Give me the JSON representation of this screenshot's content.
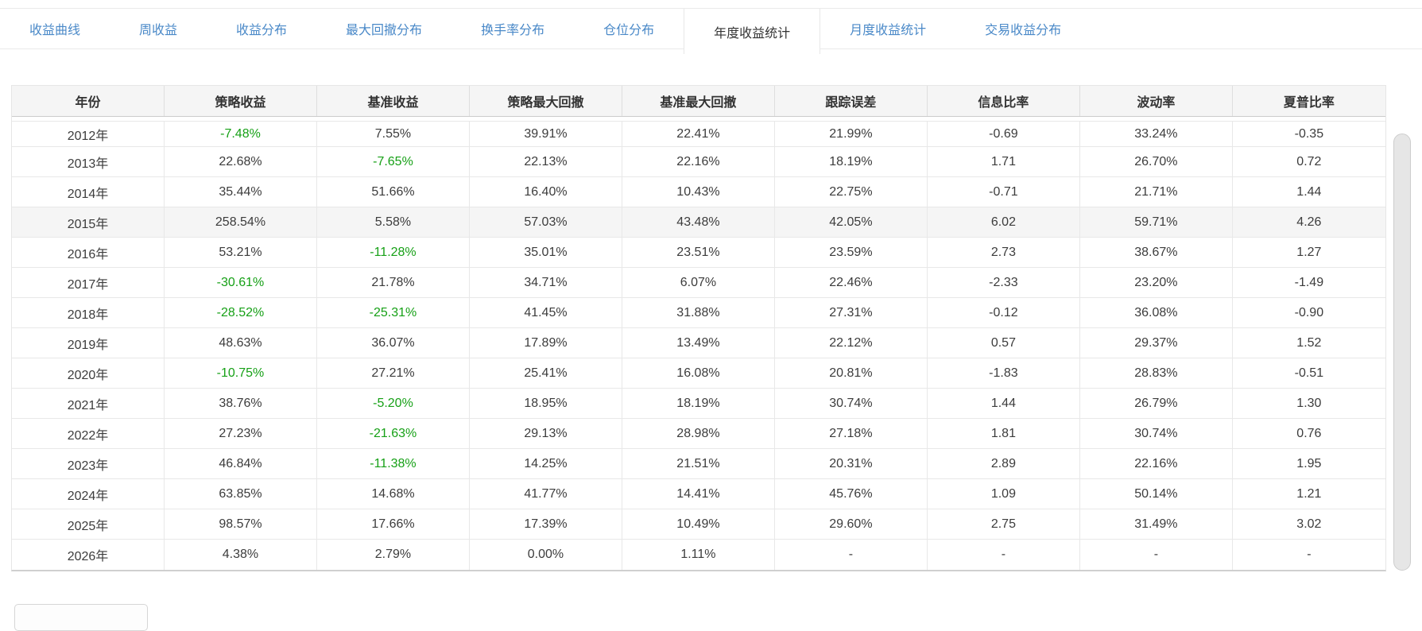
{
  "tabs": [
    {
      "id": "return-curve",
      "label": "收益曲线",
      "active": false
    },
    {
      "id": "weekly-return",
      "label": "周收益",
      "active": false
    },
    {
      "id": "return-distribution",
      "label": "收益分布",
      "active": false
    },
    {
      "id": "max-drawdown-distribution",
      "label": "最大回撤分布",
      "active": false
    },
    {
      "id": "turnover-distribution",
      "label": "换手率分布",
      "active": false
    },
    {
      "id": "position-distribution",
      "label": "仓位分布",
      "active": false
    },
    {
      "id": "annual-return-stats",
      "label": "年度收益统计",
      "active": true
    },
    {
      "id": "monthly-return-stats",
      "label": "月度收益统计",
      "active": false
    },
    {
      "id": "trade-return-distribution",
      "label": "交易收益分布",
      "active": false
    }
  ],
  "table": {
    "columns": [
      "年份",
      "策略收益",
      "基准收益",
      "策略最大回撤",
      "基准最大回撤",
      "跟踪误差",
      "信息比率",
      "波动率",
      "夏普比率"
    ],
    "rows": [
      [
        "2012年",
        "-7.48%",
        "7.55%",
        "39.91%",
        "22.41%",
        "21.99%",
        "-0.69",
        "33.24%",
        "-0.35"
      ],
      [
        "2013年",
        "22.68%",
        "-7.65%",
        "22.13%",
        "22.16%",
        "18.19%",
        "1.71",
        "26.70%",
        "0.72"
      ],
      [
        "2014年",
        "35.44%",
        "51.66%",
        "16.40%",
        "10.43%",
        "22.75%",
        "-0.71",
        "21.71%",
        "1.44"
      ],
      [
        "2015年",
        "258.54%",
        "5.58%",
        "57.03%",
        "43.48%",
        "42.05%",
        "6.02",
        "59.71%",
        "4.26"
      ],
      [
        "2016年",
        "53.21%",
        "-11.28%",
        "35.01%",
        "23.51%",
        "23.59%",
        "2.73",
        "38.67%",
        "1.27"
      ],
      [
        "2017年",
        "-30.61%",
        "21.78%",
        "34.71%",
        "6.07%",
        "22.46%",
        "-2.33",
        "23.20%",
        "-1.49"
      ],
      [
        "2018年",
        "-28.52%",
        "-25.31%",
        "41.45%",
        "31.88%",
        "27.31%",
        "-0.12",
        "36.08%",
        "-0.90"
      ],
      [
        "2019年",
        "48.63%",
        "36.07%",
        "17.89%",
        "13.49%",
        "22.12%",
        "0.57",
        "29.37%",
        "1.52"
      ],
      [
        "2020年",
        "-10.75%",
        "27.21%",
        "25.41%",
        "16.08%",
        "20.81%",
        "-1.83",
        "28.83%",
        "-0.51"
      ],
      [
        "2021年",
        "38.76%",
        "-5.20%",
        "18.95%",
        "18.19%",
        "30.74%",
        "1.44",
        "26.79%",
        "1.30"
      ],
      [
        "2022年",
        "27.23%",
        "-21.63%",
        "29.13%",
        "28.98%",
        "27.18%",
        "1.81",
        "30.74%",
        "0.76"
      ],
      [
        "2023年",
        "46.84%",
        "-11.38%",
        "14.25%",
        "21.51%",
        "20.31%",
        "2.89",
        "22.16%",
        "1.95"
      ],
      [
        "2024年",
        "63.85%",
        "14.68%",
        "41.77%",
        "14.41%",
        "45.76%",
        "1.09",
        "50.14%",
        "1.21"
      ],
      [
        "2025年",
        "98.57%",
        "17.66%",
        "17.39%",
        "10.49%",
        "29.60%",
        "2.75",
        "31.49%",
        "3.02"
      ],
      [
        "2026年",
        "4.38%",
        "2.79%",
        "0.00%",
        "1.11%",
        "-",
        "-",
        "-",
        "-"
      ]
    ],
    "highlighted_row": "2015年",
    "green_value_columns": [
      1,
      2
    ]
  },
  "colors": {
    "tab_link_blue": "#4a89c8",
    "negative_return_green": "#16a016",
    "header_background": "#f5f5f5",
    "row_hover_background": "#f5f5f5"
  }
}
